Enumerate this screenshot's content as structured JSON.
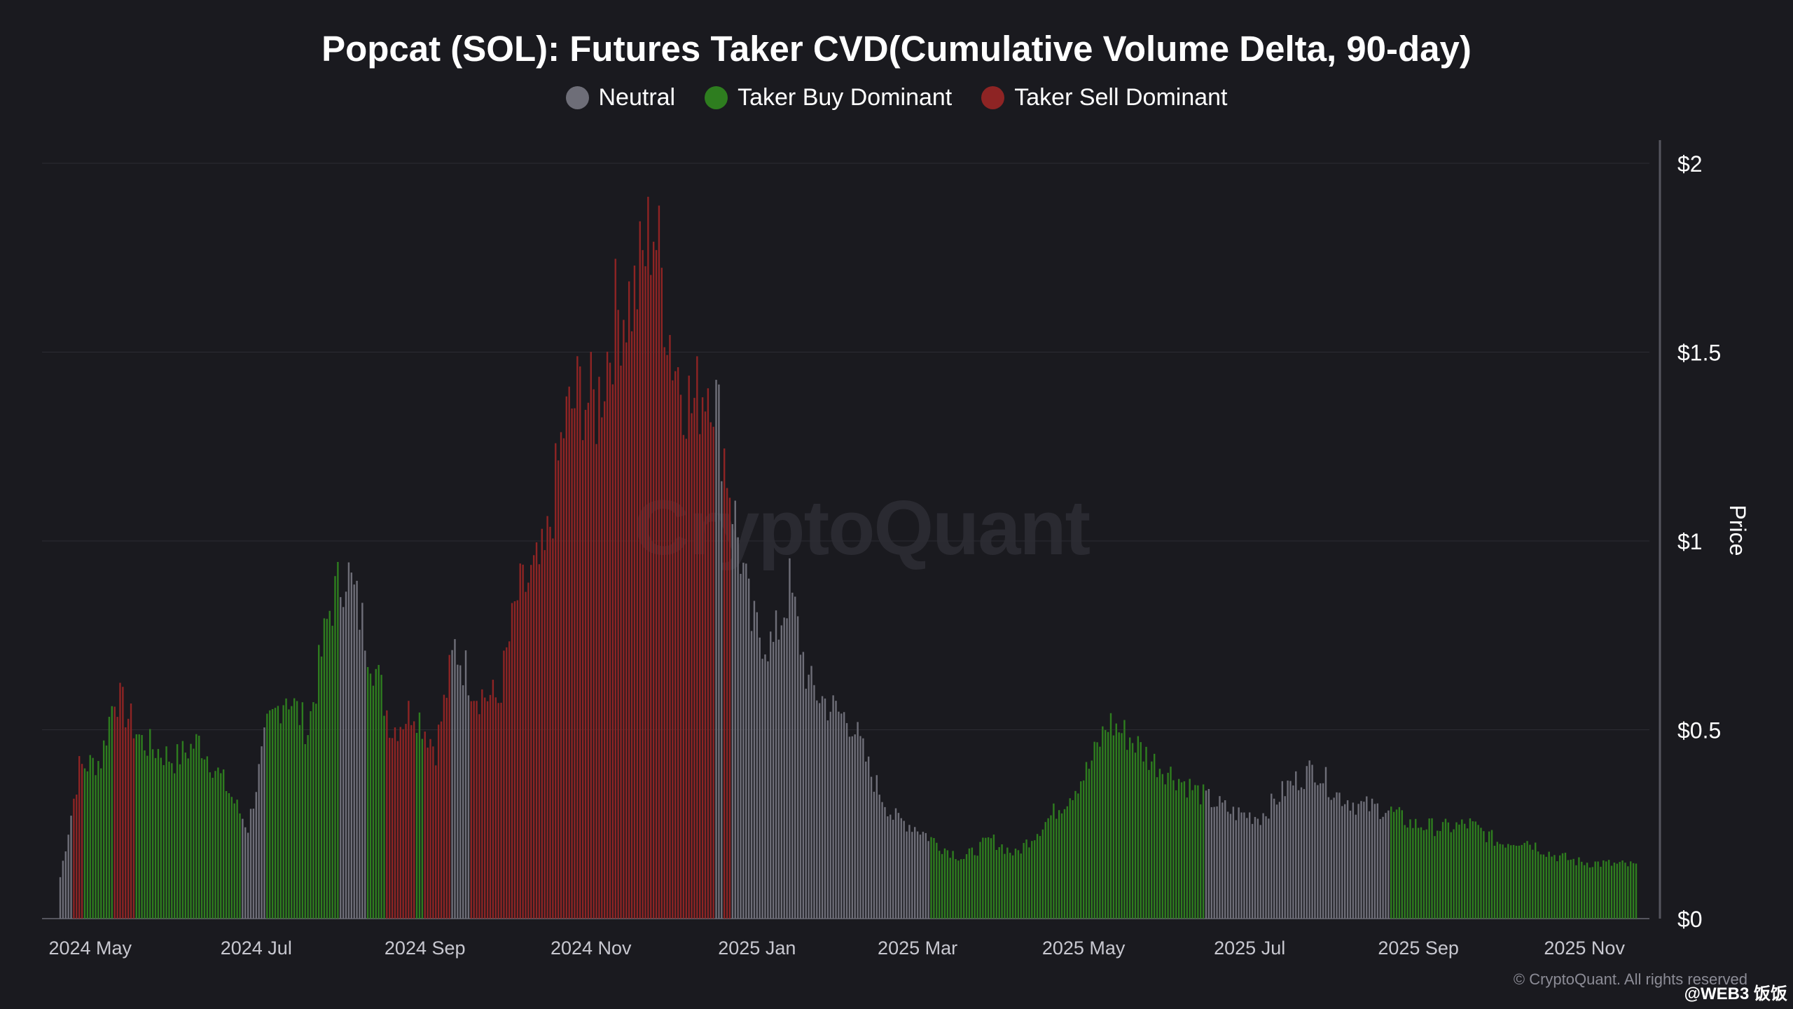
{
  "chart_data": {
    "type": "bar",
    "title": "Popcat (SOL): Futures Taker CVD(Cumulative Volume Delta, 90-day)",
    "ylabel": "Price",
    "y_axis_side": "right",
    "ylim": [
      0,
      2.0
    ],
    "yticks": [
      "$0",
      "$0.5",
      "$1",
      "$1.5",
      "$2"
    ],
    "xticks": [
      "2024 May",
      "2024 Jul",
      "2024 Sep",
      "2024 Nov",
      "2025 Jan",
      "2025 Mar",
      "2025 May",
      "2025 Jul",
      "2025 Sep",
      "2025 Nov"
    ],
    "x_range": [
      "2024-04-20",
      "2025-11-20"
    ],
    "grid": true,
    "legend_placement": "top-center",
    "legend": [
      {
        "name": "Neutral",
        "key": "neutral",
        "color": "#6e6e78"
      },
      {
        "name": "Taker Buy Dominant",
        "key": "buy",
        "color": "#2e7d1f"
      },
      {
        "name": "Taker Sell Dominant",
        "key": "sell",
        "color": "#8e2424"
      }
    ],
    "price_anchors": [
      [
        "2024-04-20",
        0.11
      ],
      [
        "2024-04-27",
        0.4
      ],
      [
        "2024-05-05",
        0.42
      ],
      [
        "2024-05-10",
        0.6
      ],
      [
        "2024-05-20",
        0.47
      ],
      [
        "2024-06-01",
        0.42
      ],
      [
        "2024-06-10",
        0.47
      ],
      [
        "2024-06-20",
        0.35
      ],
      [
        "2024-06-28",
        0.24
      ],
      [
        "2024-07-05",
        0.5
      ],
      [
        "2024-07-12",
        0.6
      ],
      [
        "2024-07-20",
        0.5
      ],
      [
        "2024-07-28",
        0.82
      ],
      [
        "2024-08-03",
        0.93
      ],
      [
        "2024-08-10",
        0.76
      ],
      [
        "2024-08-20",
        0.5
      ],
      [
        "2024-08-28",
        0.56
      ],
      [
        "2024-09-05",
        0.45
      ],
      [
        "2024-09-12",
        0.72
      ],
      [
        "2024-09-20",
        0.6
      ],
      [
        "2024-09-28",
        0.58
      ],
      [
        "2024-10-05",
        0.85
      ],
      [
        "2024-10-15",
        0.95
      ],
      [
        "2024-10-22",
        1.3
      ],
      [
        "2024-10-28",
        1.4
      ],
      [
        "2024-11-03",
        1.35
      ],
      [
        "2024-11-10",
        1.6
      ],
      [
        "2024-11-17",
        1.65
      ],
      [
        "2024-11-24",
        1.85
      ],
      [
        "2024-12-01",
        1.5
      ],
      [
        "2024-12-08",
        1.35
      ],
      [
        "2024-12-15",
        1.45
      ],
      [
        "2024-12-22",
        1.15
      ],
      [
        "2024-12-30",
        0.78
      ],
      [
        "2025-01-07",
        0.72
      ],
      [
        "2025-01-13",
        0.88
      ],
      [
        "2025-01-20",
        0.62
      ],
      [
        "2025-01-28",
        0.56
      ],
      [
        "2025-02-05",
        0.52
      ],
      [
        "2025-02-12",
        0.38
      ],
      [
        "2025-02-20",
        0.27
      ],
      [
        "2025-03-01",
        0.24
      ],
      [
        "2025-03-10",
        0.19
      ],
      [
        "2025-03-18",
        0.16
      ],
      [
        "2025-03-28",
        0.21
      ],
      [
        "2025-04-06",
        0.17
      ],
      [
        "2025-04-15",
        0.24
      ],
      [
        "2025-04-25",
        0.32
      ],
      [
        "2025-05-03",
        0.4
      ],
      [
        "2025-05-10",
        0.52
      ],
      [
        "2025-05-18",
        0.48
      ],
      [
        "2025-05-26",
        0.42
      ],
      [
        "2025-06-05",
        0.37
      ],
      [
        "2025-06-15",
        0.32
      ],
      [
        "2025-06-25",
        0.28
      ],
      [
        "2025-07-05",
        0.27
      ],
      [
        "2025-07-15",
        0.35
      ],
      [
        "2025-07-25",
        0.4
      ],
      [
        "2025-08-02",
        0.33
      ],
      [
        "2025-08-10",
        0.3
      ],
      [
        "2025-08-20",
        0.29
      ],
      [
        "2025-08-30",
        0.25
      ],
      [
        "2025-09-10",
        0.24
      ],
      [
        "2025-09-20",
        0.25
      ],
      [
        "2025-10-01",
        0.2
      ],
      [
        "2025-10-10",
        0.21
      ],
      [
        "2025-10-20",
        0.17
      ],
      [
        "2025-10-30",
        0.15
      ],
      [
        "2025-11-20",
        0.14
      ]
    ],
    "dominance_segments": [
      [
        "2024-04-20",
        "2024-04-24",
        "neutral"
      ],
      [
        "2024-04-25",
        "2024-04-28",
        "sell"
      ],
      [
        "2024-04-29",
        "2024-05-09",
        "buy"
      ],
      [
        "2024-05-10",
        "2024-05-17",
        "sell"
      ],
      [
        "2024-05-18",
        "2024-06-25",
        "buy"
      ],
      [
        "2024-06-26",
        "2024-07-04",
        "neutral"
      ],
      [
        "2024-07-05",
        "2024-07-31",
        "buy"
      ],
      [
        "2024-08-01",
        "2024-08-10",
        "neutral"
      ],
      [
        "2024-08-11",
        "2024-08-17",
        "buy"
      ],
      [
        "2024-08-18",
        "2024-08-28",
        "sell"
      ],
      [
        "2024-08-29",
        "2024-08-31",
        "buy"
      ],
      [
        "2024-09-01",
        "2024-09-10",
        "sell"
      ],
      [
        "2024-09-11",
        "2024-09-17",
        "neutral"
      ],
      [
        "2024-09-18",
        "2024-12-16",
        "sell"
      ],
      [
        "2024-12-17",
        "2024-12-19",
        "neutral"
      ],
      [
        "2024-12-20",
        "2024-12-22",
        "sell"
      ],
      [
        "2024-12-23",
        "2025-03-05",
        "neutral"
      ],
      [
        "2025-03-06",
        "2025-06-14",
        "buy"
      ],
      [
        "2025-06-15",
        "2025-08-21",
        "neutral"
      ],
      [
        "2025-08-22",
        "2025-11-20",
        "buy"
      ]
    ]
  },
  "branding": {
    "watermark": "CryptoQuant",
    "copyright": "© CryptoQuant. All rights reserved",
    "overlay_tag": "@WEB3 饭饭"
  }
}
